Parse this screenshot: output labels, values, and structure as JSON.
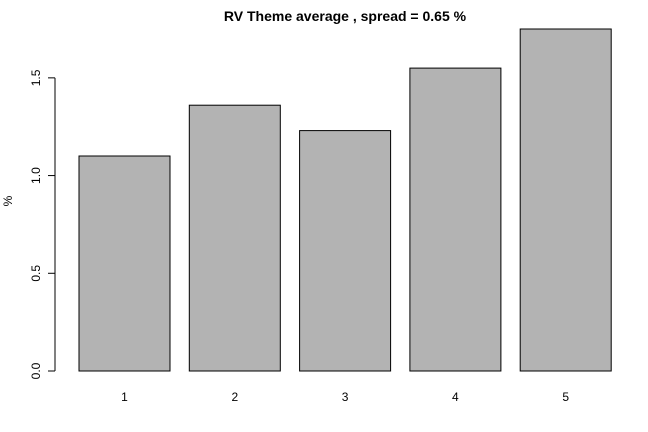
{
  "chart_data": {
    "type": "bar",
    "title": "RV Theme average , spread = 0.65 %",
    "xlabel": "",
    "ylabel": "%",
    "categories": [
      "1",
      "2",
      "3",
      "4",
      "5"
    ],
    "values": [
      1.1,
      1.36,
      1.23,
      1.55,
      1.75
    ],
    "ylim": [
      0,
      1.75
    ],
    "yticks": [
      "0.0",
      "0.5",
      "1.0",
      "1.5"
    ],
    "bar_color": "#b3b3b3",
    "grid": false,
    "legend": "none"
  }
}
